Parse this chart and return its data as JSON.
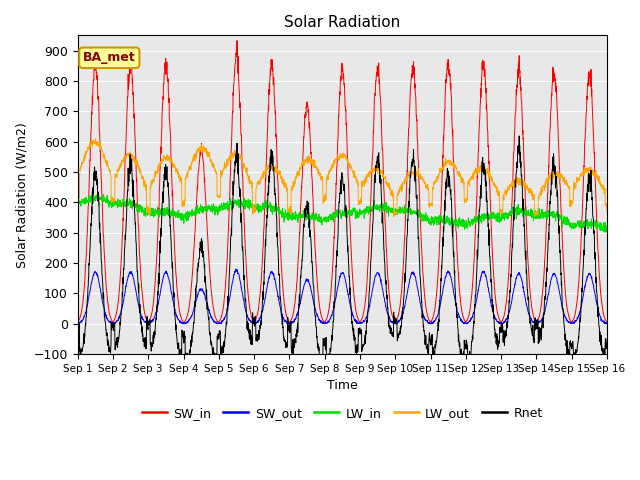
{
  "title": "Solar Radiation",
  "xlabel": "Time",
  "ylabel": "Solar Radiation (W/m2)",
  "ylim": [
    -100,
    950
  ],
  "xlim": [
    0,
    15
  ],
  "yticks": [
    -100,
    0,
    100,
    200,
    300,
    400,
    500,
    600,
    700,
    800,
    900
  ],
  "xtick_labels": [
    "Sep 1",
    "Sep 2",
    "Sep 3",
    "Sep 4",
    "Sep 5",
    "Sep 6",
    "Sep 7",
    "Sep 8",
    "Sep 9",
    "Sep 10",
    "Sep 11",
    "Sep 12",
    "Sep 13",
    "Sep 14",
    "Sep 15",
    "Sep 16"
  ],
  "legend_labels": [
    "SW_in",
    "SW_out",
    "LW_in",
    "LW_out",
    "Rnet"
  ],
  "colors": {
    "SW_in": "#FF0000",
    "SW_out": "#0000FF",
    "LW_in": "#00DD00",
    "LW_out": "#FFA500",
    "Rnet": "#000000"
  },
  "annotation_text": "BA_met",
  "annotation_bg": "#FFFF99",
  "annotation_border": "#CC9900",
  "bg_color": "#E8E8E8",
  "n_days": 15,
  "pts_per_day": 144
}
